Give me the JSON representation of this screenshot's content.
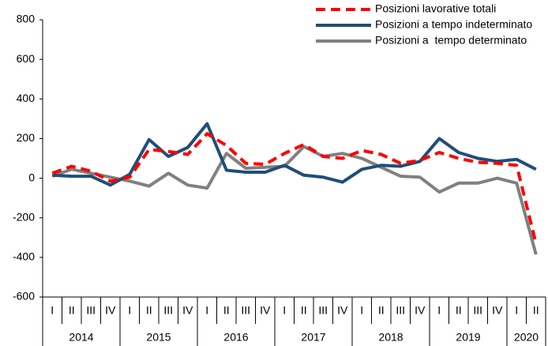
{
  "chart_data": {
    "type": "line",
    "categories": [
      "I",
      "II",
      "III",
      "IV",
      "I",
      "II",
      "III",
      "IV",
      "I",
      "II",
      "III",
      "IV",
      "I",
      "II",
      "III",
      "IV",
      "I",
      "II",
      "III",
      "IV",
      "I",
      "II",
      "III",
      "IV",
      "I",
      "II"
    ],
    "years": [
      "2014",
      "2015",
      "2016",
      "2017",
      "2018",
      "2019",
      "2020"
    ],
    "series": [
      {
        "name": "Posizioni lavorative totali",
        "color": "#ff0000",
        "dashed": true,
        "values": [
          25,
          60,
          35,
          -15,
          5,
          145,
          135,
          120,
          225,
          165,
          75,
          70,
          125,
          170,
          110,
          100,
          140,
          120,
          75,
          90,
          130,
          100,
          80,
          75,
          65,
          -330
        ]
      },
      {
        "name": "Posizioni a tempo indeterminato",
        "color": "#1f4e79",
        "dashed": false,
        "values": [
          15,
          10,
          10,
          -35,
          20,
          195,
          110,
          155,
          275,
          40,
          30,
          30,
          65,
          15,
          5,
          -20,
          45,
          65,
          60,
          85,
          200,
          130,
          100,
          85,
          95,
          45
        ]
      },
      {
        "name": "Posizioni a  tempo determinato",
        "color": "#808080",
        "dashed": false,
        "values": [
          10,
          45,
          25,
          5,
          -15,
          -40,
          25,
          -35,
          -50,
          125,
          50,
          55,
          60,
          160,
          110,
          125,
          100,
          55,
          10,
          5,
          -70,
          -25,
          -25,
          0,
          -25,
          -385
        ]
      }
    ],
    "ylim": [
      -600,
      800
    ],
    "yticks": [
      -600,
      -400,
      -200,
      0,
      200,
      400,
      600,
      800
    ],
    "grid": false
  }
}
